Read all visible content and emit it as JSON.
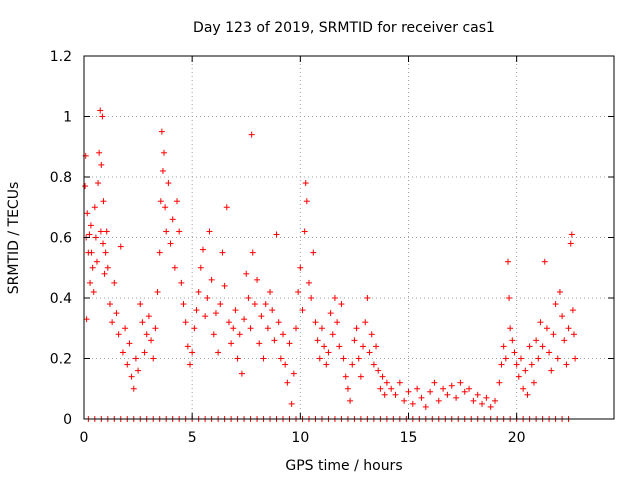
{
  "chart_data": {
    "type": "scatter",
    "title": "Day 123 of 2019, SRMTID for receiver cas1",
    "xlabel": "GPS time / hours",
    "ylabel": "SRMTID / TECUs",
    "xlim": [
      0,
      24.5
    ],
    "ylim": [
      0,
      1.2
    ],
    "xticks": [
      0,
      5,
      10,
      15,
      20
    ],
    "xtick_labels": [
      "0",
      "5",
      "10",
      "15",
      "20"
    ],
    "yticks": [
      0,
      0.2,
      0.4,
      0.6,
      0.8,
      1.0,
      1.2
    ],
    "ytick_labels": [
      "0",
      "0.2",
      "0.4",
      "0.6",
      "0.8",
      "1",
      "1.2"
    ],
    "grid": true,
    "marker": "+",
    "color": "#ff0000",
    "series": [
      {
        "name": "cas1",
        "points": [
          [
            0.05,
            0.77
          ],
          [
            0.08,
            0.87
          ],
          [
            0.1,
            0.6
          ],
          [
            0.12,
            0.33
          ],
          [
            0.15,
            0.68
          ],
          [
            0.2,
            0.55
          ],
          [
            0.25,
            0.61
          ],
          [
            0.28,
            0.45
          ],
          [
            0.32,
            0.64
          ],
          [
            0.35,
            0.55
          ],
          [
            0.4,
            0.5
          ],
          [
            0.45,
            0.42
          ],
          [
            0.5,
            0.7
          ],
          [
            0.55,
            0.6
          ],
          [
            0.6,
            0.52
          ],
          [
            0.65,
            0.78
          ],
          [
            0.7,
            0.88
          ],
          [
            0.75,
            1.02
          ],
          [
            0.78,
            0.62
          ],
          [
            0.8,
            0.84
          ],
          [
            0.85,
            1.0
          ],
          [
            0.88,
            0.58
          ],
          [
            0.9,
            0.72
          ],
          [
            0.95,
            0.48
          ],
          [
            1.0,
            0.55
          ],
          [
            1.05,
            0.62
          ],
          [
            1.1,
            0.5
          ],
          [
            1.2,
            0.38
          ],
          [
            1.3,
            0.32
          ],
          [
            1.4,
            0.45
          ],
          [
            1.5,
            0.35
          ],
          [
            1.6,
            0.28
          ],
          [
            1.7,
            0.57
          ],
          [
            1.8,
            0.22
          ],
          [
            1.9,
            0.3
          ],
          [
            2.0,
            0.18
          ],
          [
            2.1,
            0.25
          ],
          [
            2.2,
            0.14
          ],
          [
            2.3,
            0.1
          ],
          [
            2.4,
            0.2
          ],
          [
            2.5,
            0.16
          ],
          [
            2.6,
            0.38
          ],
          [
            2.7,
            0.32
          ],
          [
            2.8,
            0.22
          ],
          [
            2.9,
            0.28
          ],
          [
            3.0,
            0.34
          ],
          [
            3.1,
            0.26
          ],
          [
            3.2,
            0.2
          ],
          [
            3.3,
            0.3
          ],
          [
            3.4,
            0.42
          ],
          [
            3.5,
            0.55
          ],
          [
            3.55,
            0.72
          ],
          [
            3.6,
            0.95
          ],
          [
            3.65,
            0.82
          ],
          [
            3.7,
            0.88
          ],
          [
            3.75,
            0.7
          ],
          [
            3.8,
            0.62
          ],
          [
            3.9,
            0.78
          ],
          [
            4.0,
            0.58
          ],
          [
            4.1,
            0.66
          ],
          [
            4.2,
            0.5
          ],
          [
            4.3,
            0.72
          ],
          [
            4.4,
            0.62
          ],
          [
            4.5,
            0.45
          ],
          [
            4.6,
            0.38
          ],
          [
            4.7,
            0.32
          ],
          [
            4.8,
            0.24
          ],
          [
            4.9,
            0.18
          ],
          [
            5.0,
            0.22
          ],
          [
            5.1,
            0.3
          ],
          [
            5.2,
            0.36
          ],
          [
            5.3,
            0.42
          ],
          [
            5.4,
            0.5
          ],
          [
            5.5,
            0.56
          ],
          [
            5.6,
            0.34
          ],
          [
            5.7,
            0.4
          ],
          [
            5.8,
            0.62
          ],
          [
            5.9,
            0.46
          ],
          [
            6.0,
            0.28
          ],
          [
            6.1,
            0.35
          ],
          [
            6.2,
            0.22
          ],
          [
            6.3,
            0.38
          ],
          [
            6.4,
            0.55
          ],
          [
            6.5,
            0.44
          ],
          [
            6.6,
            0.7
          ],
          [
            6.7,
            0.32
          ],
          [
            6.8,
            0.25
          ],
          [
            6.9,
            0.3
          ],
          [
            7.0,
            0.36
          ],
          [
            7.1,
            0.2
          ],
          [
            7.2,
            0.28
          ],
          [
            7.3,
            0.15
          ],
          [
            7.4,
            0.33
          ],
          [
            7.5,
            0.48
          ],
          [
            7.6,
            0.4
          ],
          [
            7.7,
            0.3
          ],
          [
            7.75,
            0.94
          ],
          [
            7.8,
            0.55
          ],
          [
            7.9,
            0.38
          ],
          [
            8.0,
            0.46
          ],
          [
            8.1,
            0.25
          ],
          [
            8.2,
            0.34
          ],
          [
            8.3,
            0.2
          ],
          [
            8.4,
            0.38
          ],
          [
            8.5,
            0.3
          ],
          [
            8.6,
            0.42
          ],
          [
            8.7,
            0.36
          ],
          [
            8.8,
            0.26
          ],
          [
            8.9,
            0.61
          ],
          [
            9.0,
            0.32
          ],
          [
            9.1,
            0.2
          ],
          [
            9.2,
            0.28
          ],
          [
            9.3,
            0.18
          ],
          [
            9.4,
            0.12
          ],
          [
            9.5,
            0.25
          ],
          [
            9.6,
            0.05
          ],
          [
            9.7,
            0.15
          ],
          [
            9.8,
            0.3
          ],
          [
            9.9,
            0.42
          ],
          [
            10.0,
            0.5
          ],
          [
            10.1,
            0.36
          ],
          [
            10.2,
            0.62
          ],
          [
            10.25,
            0.78
          ],
          [
            10.3,
            0.72
          ],
          [
            10.4,
            0.45
          ],
          [
            10.5,
            0.4
          ],
          [
            10.6,
            0.55
          ],
          [
            10.7,
            0.32
          ],
          [
            10.8,
            0.26
          ],
          [
            10.9,
            0.2
          ],
          [
            11.0,
            0.3
          ],
          [
            11.1,
            0.24
          ],
          [
            11.2,
            0.18
          ],
          [
            11.3,
            0.22
          ],
          [
            11.4,
            0.35
          ],
          [
            11.5,
            0.28
          ],
          [
            11.6,
            0.4
          ],
          [
            11.7,
            0.32
          ],
          [
            11.8,
            0.24
          ],
          [
            11.9,
            0.38
          ],
          [
            12.0,
            0.2
          ],
          [
            12.1,
            0.14
          ],
          [
            12.2,
            0.1
          ],
          [
            12.3,
            0.06
          ],
          [
            12.4,
            0.18
          ],
          [
            12.5,
            0.26
          ],
          [
            12.6,
            0.3
          ],
          [
            12.7,
            0.2
          ],
          [
            12.8,
            0.14
          ],
          [
            12.9,
            0.24
          ],
          [
            13.0,
            0.32
          ],
          [
            13.1,
            0.4
          ],
          [
            13.2,
            0.22
          ],
          [
            13.3,
            0.28
          ],
          [
            13.4,
            0.18
          ],
          [
            13.5,
            0.24
          ],
          [
            13.6,
            0.16
          ],
          [
            13.7,
            0.1
          ],
          [
            13.8,
            0.14
          ],
          [
            13.9,
            0.08
          ],
          [
            14.0,
            0.12
          ],
          [
            14.2,
            0.1
          ],
          [
            14.4,
            0.08
          ],
          [
            14.6,
            0.12
          ],
          [
            14.8,
            0.06
          ],
          [
            15.0,
            0.09
          ],
          [
            15.2,
            0.05
          ],
          [
            15.4,
            0.1
          ],
          [
            15.6,
            0.07
          ],
          [
            15.8,
            0.04
          ],
          [
            16.0,
            0.09
          ],
          [
            16.2,
            0.12
          ],
          [
            16.4,
            0.06
          ],
          [
            16.6,
            0.1
          ],
          [
            16.8,
            0.08
          ],
          [
            17.0,
            0.11
          ],
          [
            17.2,
            0.07
          ],
          [
            17.4,
            0.12
          ],
          [
            17.6,
            0.09
          ],
          [
            17.8,
            0.1
          ],
          [
            18.0,
            0.06
          ],
          [
            18.2,
            0.08
          ],
          [
            18.4,
            0.05
          ],
          [
            18.6,
            0.07
          ],
          [
            18.8,
            0.04
          ],
          [
            19.0,
            0.06
          ],
          [
            19.2,
            0.12
          ],
          [
            19.3,
            0.18
          ],
          [
            19.4,
            0.24
          ],
          [
            19.5,
            0.2
          ],
          [
            19.6,
            0.52
          ],
          [
            19.65,
            0.4
          ],
          [
            19.7,
            0.3
          ],
          [
            19.8,
            0.26
          ],
          [
            19.9,
            0.22
          ],
          [
            20.0,
            0.18
          ],
          [
            20.1,
            0.14
          ],
          [
            20.2,
            0.2
          ],
          [
            20.3,
            0.1
          ],
          [
            20.4,
            0.16
          ],
          [
            20.5,
            0.08
          ],
          [
            20.6,
            0.24
          ],
          [
            20.7,
            0.18
          ],
          [
            20.8,
            0.12
          ],
          [
            20.9,
            0.26
          ],
          [
            21.0,
            0.2
          ],
          [
            21.1,
            0.32
          ],
          [
            21.2,
            0.24
          ],
          [
            21.3,
            0.52
          ],
          [
            21.4,
            0.3
          ],
          [
            21.5,
            0.22
          ],
          [
            21.6,
            0.16
          ],
          [
            21.7,
            0.28
          ],
          [
            21.8,
            0.38
          ],
          [
            21.9,
            0.2
          ],
          [
            22.0,
            0.42
          ],
          [
            22.1,
            0.34
          ],
          [
            22.2,
            0.26
          ],
          [
            22.3,
            0.18
          ],
          [
            22.4,
            0.3
          ],
          [
            22.5,
            0.58
          ],
          [
            22.55,
            0.61
          ],
          [
            22.6,
            0.36
          ],
          [
            22.65,
            0.28
          ],
          [
            22.7,
            0.2
          ]
        ],
        "zeros": [
          0.2,
          0.5,
          0.8,
          1.1,
          1.4,
          1.7,
          2.0,
          2.3,
          2.6,
          2.9,
          3.2,
          3.5,
          3.8,
          4.1,
          4.4,
          4.7,
          5.0,
          5.3,
          5.6,
          5.9,
          6.2,
          6.5,
          6.8,
          7.1,
          7.4,
          7.7,
          8.0,
          8.3,
          8.6,
          8.9,
          9.2,
          9.5,
          9.8,
          10.1,
          10.4,
          10.7,
          11.0,
          11.3,
          11.6,
          11.9,
          12.2,
          12.5,
          12.8,
          13.1,
          13.4,
          13.7,
          14.0,
          14.3,
          14.6,
          14.9,
          15.2,
          15.5,
          15.8,
          16.1,
          16.4,
          16.7,
          17.0,
          17.3,
          17.6,
          17.9,
          18.2,
          18.5,
          18.8,
          19.1,
          19.4,
          19.7,
          20.0,
          20.3,
          20.6,
          20.9,
          21.2,
          21.5,
          21.8,
          22.1,
          22.4
        ]
      }
    ]
  }
}
